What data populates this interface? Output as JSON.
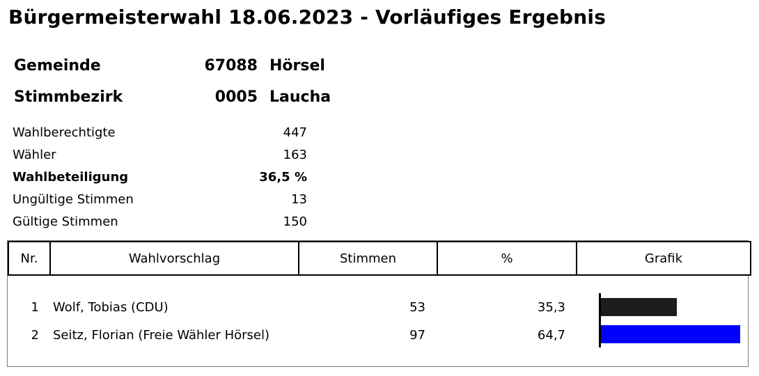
{
  "title": "Bürgermeisterwahl 18.06.2023 - Vorläufiges Ergebnis",
  "gemeinde": {
    "label": "Gemeinde",
    "number": "67088",
    "name": "Hörsel"
  },
  "stimmbezirk": {
    "label": "Stimmbezirk",
    "number": "0005",
    "name": "Laucha"
  },
  "stats": [
    {
      "label": "Wahlberechtigte",
      "value": "447"
    },
    {
      "label": "Wähler",
      "value": "163"
    },
    {
      "label": "Wahlbeteiligung",
      "value": "36,5 %"
    },
    {
      "label": "Ungültige Stimmen",
      "value": "13"
    },
    {
      "label": "Gültige Stimmen",
      "value": "150"
    }
  ],
  "table": {
    "headers": [
      "Nr.",
      "Wahlvorschlag",
      "Stimmen",
      "%",
      "Grafik"
    ],
    "rows": [
      {
        "nr": "1",
        "name": "Wolf, Tobias (CDU)",
        "votes": "53",
        "percent": "35,3",
        "share": 35.3,
        "color": "#1c1c1c"
      },
      {
        "nr": "2",
        "name": "Seitz, Florian (Freie Wähler Hörsel)",
        "votes": "97",
        "percent": "64,7",
        "share": 64.7,
        "color": "#0000ff"
      }
    ]
  }
}
